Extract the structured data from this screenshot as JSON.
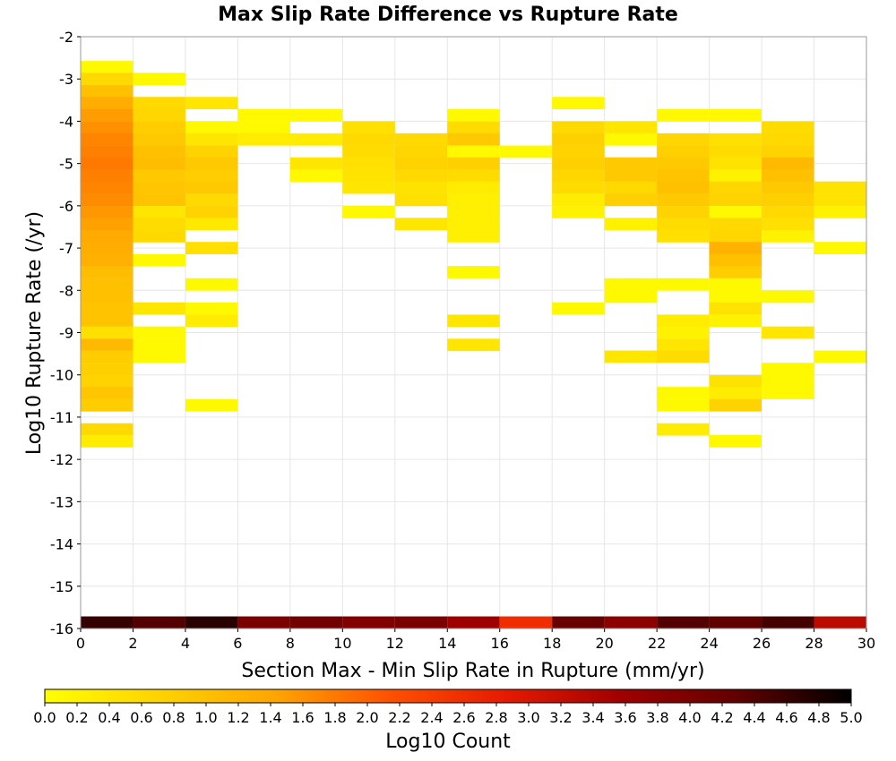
{
  "chart_data": {
    "type": "heatmap",
    "title": "Max Slip Rate Difference vs Rupture Rate",
    "xlabel": "Section Max - Min Slip Rate in Rupture (mm/yr)",
    "ylabel": "Log10 Rupture Rate (/yr)",
    "xlim": [
      0,
      30
    ],
    "ylim": [
      -16,
      -2
    ],
    "x_ticks": [
      "0",
      "2",
      "4",
      "6",
      "8",
      "10",
      "12",
      "14",
      "16",
      "18",
      "20",
      "22",
      "24",
      "26",
      "28",
      "30"
    ],
    "y_ticks": [
      "-2",
      "-3",
      "-4",
      "-5",
      "-6",
      "-7",
      "-8",
      "-9",
      "-10",
      "-11",
      "-12",
      "-13",
      "-14",
      "-15",
      "-16"
    ],
    "x_bin_width": 2,
    "y_bin_height": 0.2857,
    "grid": true,
    "colorbar": {
      "label": "Log10 Count",
      "min": 0,
      "max": 5,
      "ticks": [
        "0.0",
        "0.2",
        "0.4",
        "0.6",
        "0.8",
        "1.0",
        "1.2",
        "1.4",
        "1.6",
        "1.8",
        "2.0",
        "2.2",
        "2.4",
        "2.6",
        "2.8",
        "3.0",
        "3.2",
        "3.4",
        "3.6",
        "3.8",
        "4.0",
        "4.2",
        "4.4",
        "4.6",
        "4.8",
        "5.0"
      ],
      "colors": [
        "#ffff00",
        "#ffd200",
        "#ffa500",
        "#ff5000",
        "#e61a00",
        "#a00000",
        "#620000",
        "#000000"
      ]
    },
    "cells": [
      {
        "x": 0,
        "y": -2.86,
        "v": 0.1
      },
      {
        "x": 0,
        "y": -3.14,
        "v": 0.6
      },
      {
        "x": 0,
        "y": -3.43,
        "v": 1.0
      },
      {
        "x": 0,
        "y": -3.71,
        "v": 1.3
      },
      {
        "x": 0,
        "y": -4.0,
        "v": 1.5
      },
      {
        "x": 0,
        "y": -4.29,
        "v": 1.6
      },
      {
        "x": 0,
        "y": -4.57,
        "v": 1.7
      },
      {
        "x": 0,
        "y": -4.86,
        "v": 1.75
      },
      {
        "x": 0,
        "y": -5.14,
        "v": 1.8
      },
      {
        "x": 0,
        "y": -5.43,
        "v": 1.75
      },
      {
        "x": 0,
        "y": -5.71,
        "v": 1.7
      },
      {
        "x": 0,
        "y": -6.0,
        "v": 1.65
      },
      {
        "x": 0,
        "y": -6.29,
        "v": 1.55
      },
      {
        "x": 0,
        "y": -6.57,
        "v": 1.45
      },
      {
        "x": 0,
        "y": -6.86,
        "v": 1.35
      },
      {
        "x": 0,
        "y": -7.14,
        "v": 1.3
      },
      {
        "x": 0,
        "y": -7.43,
        "v": 1.25
      },
      {
        "x": 0,
        "y": -7.71,
        "v": 1.05
      },
      {
        "x": 0,
        "y": -8.0,
        "v": 1.0
      },
      {
        "x": 0,
        "y": -8.29,
        "v": 1.0
      },
      {
        "x": 0,
        "y": -8.57,
        "v": 0.95
      },
      {
        "x": 0,
        "y": -8.86,
        "v": 0.95
      },
      {
        "x": 0,
        "y": -9.14,
        "v": 0.5
      },
      {
        "x": 0,
        "y": -9.43,
        "v": 1.1
      },
      {
        "x": 0,
        "y": -9.71,
        "v": 0.8
      },
      {
        "x": 0,
        "y": -10.0,
        "v": 0.75
      },
      {
        "x": 0,
        "y": -10.29,
        "v": 0.7
      },
      {
        "x": 0,
        "y": -10.57,
        "v": 0.9
      },
      {
        "x": 0,
        "y": -10.86,
        "v": 0.8
      },
      {
        "x": 0,
        "y": -11.43,
        "v": 0.6
      },
      {
        "x": 0,
        "y": -11.71,
        "v": 0.3
      },
      {
        "x": 2,
        "y": -3.14,
        "v": 0.1
      },
      {
        "x": 2,
        "y": -3.71,
        "v": 0.6
      },
      {
        "x": 2,
        "y": -4.0,
        "v": 0.65
      },
      {
        "x": 2,
        "y": -4.29,
        "v": 0.8
      },
      {
        "x": 2,
        "y": -4.57,
        "v": 0.85
      },
      {
        "x": 2,
        "y": -4.86,
        "v": 1.0
      },
      {
        "x": 2,
        "y": -5.14,
        "v": 1.05
      },
      {
        "x": 2,
        "y": -5.43,
        "v": 0.85
      },
      {
        "x": 2,
        "y": -5.71,
        "v": 0.9
      },
      {
        "x": 2,
        "y": -6.0,
        "v": 0.95
      },
      {
        "x": 2,
        "y": -6.29,
        "v": 0.4
      },
      {
        "x": 2,
        "y": -6.57,
        "v": 0.55
      },
      {
        "x": 2,
        "y": -6.86,
        "v": 0.6
      },
      {
        "x": 2,
        "y": -7.43,
        "v": 0.1
      },
      {
        "x": 2,
        "y": -8.57,
        "v": 0.4
      },
      {
        "x": 2,
        "y": -9.14,
        "v": 0.1
      },
      {
        "x": 2,
        "y": -9.43,
        "v": 0.1
      },
      {
        "x": 2,
        "y": -9.71,
        "v": 0.1
      },
      {
        "x": 4,
        "y": -3.71,
        "v": 0.4
      },
      {
        "x": 4,
        "y": -4.29,
        "v": 0.1
      },
      {
        "x": 4,
        "y": -4.57,
        "v": 0.4
      },
      {
        "x": 4,
        "y": -4.86,
        "v": 0.7
      },
      {
        "x": 4,
        "y": -5.14,
        "v": 0.85
      },
      {
        "x": 4,
        "y": -5.43,
        "v": 0.8
      },
      {
        "x": 4,
        "y": -5.71,
        "v": 0.85
      },
      {
        "x": 4,
        "y": -6.0,
        "v": 0.6
      },
      {
        "x": 4,
        "y": -6.29,
        "v": 0.7
      },
      {
        "x": 4,
        "y": -6.57,
        "v": 0.35
      },
      {
        "x": 4,
        "y": -7.14,
        "v": 0.5
      },
      {
        "x": 4,
        "y": -8.0,
        "v": 0.1
      },
      {
        "x": 4,
        "y": -8.57,
        "v": 0.1
      },
      {
        "x": 4,
        "y": -8.86,
        "v": 0.3
      },
      {
        "x": 4,
        "y": -10.86,
        "v": 0.1
      },
      {
        "x": 6,
        "y": -4.0,
        "v": 0.1
      },
      {
        "x": 6,
        "y": -4.29,
        "v": 0.1
      },
      {
        "x": 6,
        "y": -4.57,
        "v": 0.3
      },
      {
        "x": 8,
        "y": -4.0,
        "v": 0.1
      },
      {
        "x": 8,
        "y": -4.57,
        "v": 0.3
      },
      {
        "x": 8,
        "y": -5.14,
        "v": 0.4
      },
      {
        "x": 8,
        "y": -5.43,
        "v": 0.1
      },
      {
        "x": 10,
        "y": -4.29,
        "v": 0.5
      },
      {
        "x": 10,
        "y": -4.57,
        "v": 0.6
      },
      {
        "x": 10,
        "y": -4.86,
        "v": 0.55
      },
      {
        "x": 10,
        "y": -5.14,
        "v": 0.5
      },
      {
        "x": 10,
        "y": -5.43,
        "v": 0.45
      },
      {
        "x": 10,
        "y": -5.71,
        "v": 0.4
      },
      {
        "x": 10,
        "y": -6.29,
        "v": 0.1
      },
      {
        "x": 12,
        "y": -4.57,
        "v": 0.6
      },
      {
        "x": 12,
        "y": -4.86,
        "v": 0.65
      },
      {
        "x": 12,
        "y": -5.14,
        "v": 0.7
      },
      {
        "x": 12,
        "y": -5.43,
        "v": 0.6
      },
      {
        "x": 12,
        "y": -5.71,
        "v": 0.45
      },
      {
        "x": 12,
        "y": -6.0,
        "v": 0.5
      },
      {
        "x": 12,
        "y": -6.57,
        "v": 0.4
      },
      {
        "x": 14,
        "y": -4.0,
        "v": 0.1
      },
      {
        "x": 14,
        "y": -4.29,
        "v": 0.55
      },
      {
        "x": 14,
        "y": -4.57,
        "v": 0.85
      },
      {
        "x": 14,
        "y": -4.86,
        "v": 0.1
      },
      {
        "x": 14,
        "y": -5.14,
        "v": 0.75
      },
      {
        "x": 14,
        "y": -5.43,
        "v": 0.55
      },
      {
        "x": 14,
        "y": -5.71,
        "v": 0.3
      },
      {
        "x": 14,
        "y": -6.0,
        "v": 0.25
      },
      {
        "x": 14,
        "y": -6.29,
        "v": 0.25
      },
      {
        "x": 14,
        "y": -6.57,
        "v": 0.25
      },
      {
        "x": 14,
        "y": -6.86,
        "v": 0.25
      },
      {
        "x": 14,
        "y": -7.71,
        "v": 0.1
      },
      {
        "x": 14,
        "y": -8.86,
        "v": 0.4
      },
      {
        "x": 14,
        "y": -9.43,
        "v": 0.4
      },
      {
        "x": 16,
        "y": -4.86,
        "v": 0.1
      },
      {
        "x": 18,
        "y": -3.71,
        "v": 0.1
      },
      {
        "x": 18,
        "y": -4.29,
        "v": 0.6
      },
      {
        "x": 18,
        "y": -4.57,
        "v": 0.75
      },
      {
        "x": 18,
        "y": -4.86,
        "v": 0.7
      },
      {
        "x": 18,
        "y": -5.14,
        "v": 0.75
      },
      {
        "x": 18,
        "y": -5.43,
        "v": 0.65
      },
      {
        "x": 18,
        "y": -5.71,
        "v": 0.55
      },
      {
        "x": 18,
        "y": -6.0,
        "v": 0.3
      },
      {
        "x": 18,
        "y": -6.29,
        "v": 0.2
      },
      {
        "x": 18,
        "y": -8.57,
        "v": 0.1
      },
      {
        "x": 20,
        "y": -4.29,
        "v": 0.4
      },
      {
        "x": 20,
        "y": -4.57,
        "v": 0.1
      },
      {
        "x": 20,
        "y": -5.14,
        "v": 0.85
      },
      {
        "x": 20,
        "y": -5.43,
        "v": 0.85
      },
      {
        "x": 20,
        "y": -5.71,
        "v": 0.6
      },
      {
        "x": 20,
        "y": -6.0,
        "v": 0.75
      },
      {
        "x": 20,
        "y": -6.57,
        "v": 0.2
      },
      {
        "x": 20,
        "y": -8.0,
        "v": 0.1
      },
      {
        "x": 20,
        "y": -8.29,
        "v": 0.1
      },
      {
        "x": 20,
        "y": -9.71,
        "v": 0.4
      },
      {
        "x": 22,
        "y": -4.0,
        "v": 0.1
      },
      {
        "x": 22,
        "y": -4.57,
        "v": 0.65
      },
      {
        "x": 22,
        "y": -4.86,
        "v": 0.75
      },
      {
        "x": 22,
        "y": -5.14,
        "v": 0.85
      },
      {
        "x": 22,
        "y": -5.43,
        "v": 0.95
      },
      {
        "x": 22,
        "y": -5.71,
        "v": 1.0
      },
      {
        "x": 22,
        "y": -6.0,
        "v": 0.85
      },
      {
        "x": 22,
        "y": -6.29,
        "v": 0.7
      },
      {
        "x": 22,
        "y": -6.57,
        "v": 0.55
      },
      {
        "x": 22,
        "y": -6.86,
        "v": 0.5
      },
      {
        "x": 22,
        "y": -8.0,
        "v": 0.1
      },
      {
        "x": 22,
        "y": -8.86,
        "v": 0.3
      },
      {
        "x": 22,
        "y": -9.14,
        "v": 0.2
      },
      {
        "x": 22,
        "y": -9.43,
        "v": 0.4
      },
      {
        "x": 22,
        "y": -9.71,
        "v": 0.55
      },
      {
        "x": 22,
        "y": -10.57,
        "v": 0.1
      },
      {
        "x": 22,
        "y": -10.86,
        "v": 0.1
      },
      {
        "x": 22,
        "y": -11.43,
        "v": 0.3
      },
      {
        "x": 24,
        "y": -4.0,
        "v": 0.1
      },
      {
        "x": 24,
        "y": -4.57,
        "v": 0.5
      },
      {
        "x": 24,
        "y": -4.86,
        "v": 0.55
      },
      {
        "x": 24,
        "y": -5.14,
        "v": 0.45
      },
      {
        "x": 24,
        "y": -5.43,
        "v": 0.2
      },
      {
        "x": 24,
        "y": -5.71,
        "v": 0.65
      },
      {
        "x": 24,
        "y": -6.0,
        "v": 0.7
      },
      {
        "x": 24,
        "y": -6.29,
        "v": 0.1
      },
      {
        "x": 24,
        "y": -6.57,
        "v": 0.6
      },
      {
        "x": 24,
        "y": -6.86,
        "v": 0.65
      },
      {
        "x": 24,
        "y": -7.14,
        "v": 1.2
      },
      {
        "x": 24,
        "y": -7.43,
        "v": 1.0
      },
      {
        "x": 24,
        "y": -7.71,
        "v": 0.8
      },
      {
        "x": 24,
        "y": -8.0,
        "v": 0.1
      },
      {
        "x": 24,
        "y": -8.29,
        "v": 0.1
      },
      {
        "x": 24,
        "y": -8.57,
        "v": 0.45
      },
      {
        "x": 24,
        "y": -8.86,
        "v": 0.2
      },
      {
        "x": 24,
        "y": -10.29,
        "v": 0.45
      },
      {
        "x": 24,
        "y": -10.57,
        "v": 0.3
      },
      {
        "x": 24,
        "y": -10.86,
        "v": 0.7
      },
      {
        "x": 24,
        "y": -11.71,
        "v": 0.1
      },
      {
        "x": 26,
        "y": -4.29,
        "v": 0.55
      },
      {
        "x": 26,
        "y": -4.57,
        "v": 0.6
      },
      {
        "x": 26,
        "y": -4.86,
        "v": 0.7
      },
      {
        "x": 26,
        "y": -5.14,
        "v": 1.1
      },
      {
        "x": 26,
        "y": -5.43,
        "v": 1.0
      },
      {
        "x": 26,
        "y": -5.71,
        "v": 0.85
      },
      {
        "x": 26,
        "y": -6.0,
        "v": 0.75
      },
      {
        "x": 26,
        "y": -6.29,
        "v": 0.6
      },
      {
        "x": 26,
        "y": -6.57,
        "v": 0.5
      },
      {
        "x": 26,
        "y": -6.86,
        "v": 0.2
      },
      {
        "x": 26,
        "y": -8.29,
        "v": 0.1
      },
      {
        "x": 26,
        "y": -9.14,
        "v": 0.4
      },
      {
        "x": 26,
        "y": -10.0,
        "v": 0.1
      },
      {
        "x": 26,
        "y": -10.29,
        "v": 0.1
      },
      {
        "x": 26,
        "y": -10.57,
        "v": 0.1
      },
      {
        "x": 28,
        "y": -5.71,
        "v": 0.45
      },
      {
        "x": 28,
        "y": -6.0,
        "v": 0.45
      },
      {
        "x": 28,
        "y": -6.29,
        "v": 0.2
      },
      {
        "x": 28,
        "y": -7.14,
        "v": 0.1
      },
      {
        "x": 28,
        "y": -9.71,
        "v": 0.1
      },
      {
        "x": 0,
        "y": -16.0,
        "v": 4.6
      },
      {
        "x": 2,
        "y": -16.0,
        "v": 4.4
      },
      {
        "x": 4,
        "y": -16.0,
        "v": 4.7
      },
      {
        "x": 6,
        "y": -16.0,
        "v": 4.0
      },
      {
        "x": 8,
        "y": -16.0,
        "v": 4.1
      },
      {
        "x": 10,
        "y": -16.0,
        "v": 3.9
      },
      {
        "x": 12,
        "y": -16.0,
        "v": 4.0
      },
      {
        "x": 14,
        "y": -16.0,
        "v": 3.6
      },
      {
        "x": 16,
        "y": -16.0,
        "v": 2.6
      },
      {
        "x": 18,
        "y": -16.0,
        "v": 4.2
      },
      {
        "x": 20,
        "y": -16.0,
        "v": 3.8
      },
      {
        "x": 22,
        "y": -16.0,
        "v": 4.4
      },
      {
        "x": 24,
        "y": -16.0,
        "v": 4.3
      },
      {
        "x": 26,
        "y": -16.0,
        "v": 4.5
      },
      {
        "x": 28,
        "y": -16.0,
        "v": 3.3
      }
    ]
  }
}
